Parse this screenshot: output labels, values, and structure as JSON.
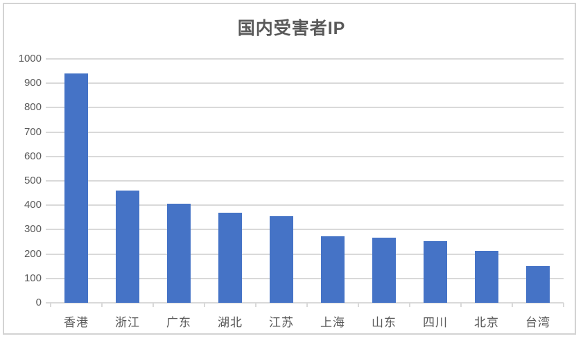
{
  "window": {
    "background_color": "#ffffff",
    "frame_border_color": "#d3d3d3"
  },
  "chart_data": {
    "type": "bar",
    "title": "国内受害者IP",
    "categories": [
      "香港",
      "浙江",
      "广东",
      "湖北",
      "江苏",
      "上海",
      "山东",
      "四川",
      "北京",
      "台湾"
    ],
    "values": [
      940,
      460,
      405,
      370,
      354,
      273,
      266,
      252,
      214,
      150
    ],
    "yticks": [
      0,
      100,
      200,
      300,
      400,
      500,
      600,
      700,
      800,
      900,
      1000
    ],
    "ylim": [
      0,
      1000
    ],
    "xlabel": "",
    "ylabel": "",
    "grid": "horizontal",
    "legend": "none",
    "bar_color": "#4573C6",
    "gridline_color": "#d9d9d9",
    "axis_text_color": "#595959",
    "title_color": "#595959"
  }
}
